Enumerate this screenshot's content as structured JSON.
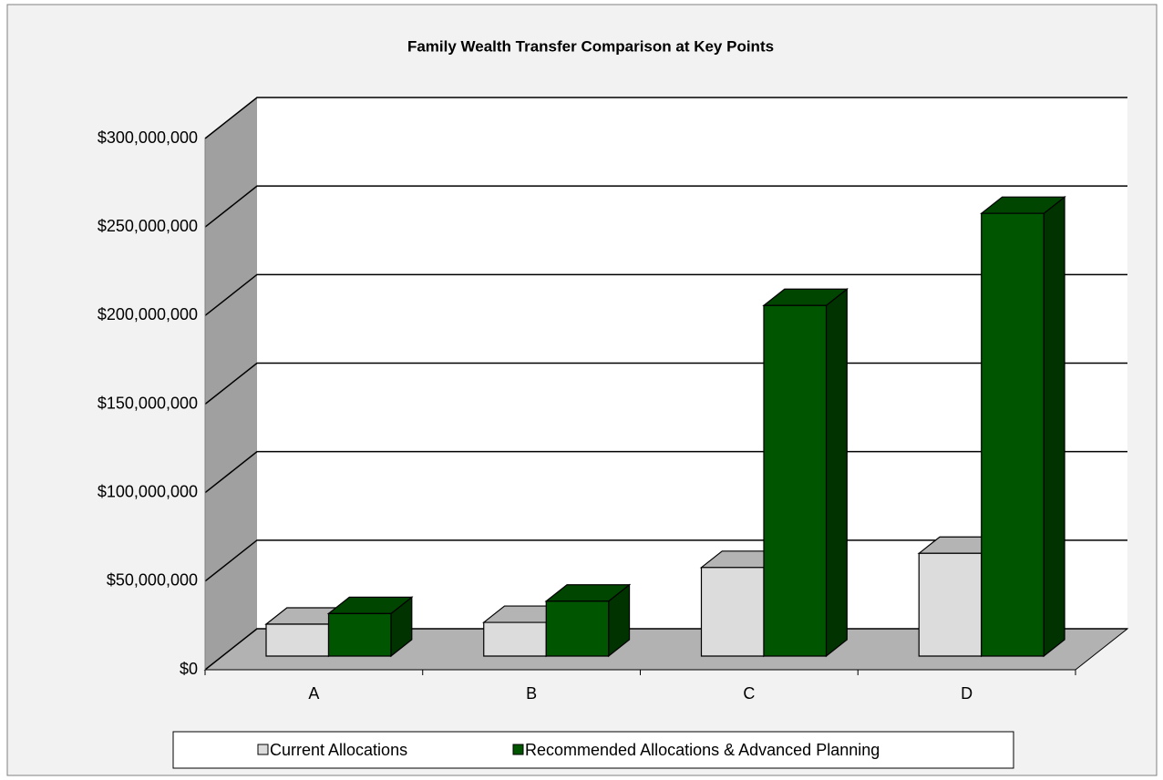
{
  "chart_data": {
    "type": "bar3d",
    "title": "Family Wealth Transfer Comparison at Key Points",
    "categories": [
      "A",
      "B",
      "C",
      "D"
    ],
    "series": [
      {
        "name": "Current Allocations",
        "color": "#dcdcdc",
        "values": [
          18000000,
          19000000,
          50000000,
          58000000
        ]
      },
      {
        "name": "Recommended Allocations & Advanced Planning",
        "color": "#005500",
        "values": [
          24000000,
          31000000,
          198000000,
          250000000
        ]
      }
    ],
    "ylim": [
      0,
      300000000
    ],
    "yticks": [
      {
        "value": 0,
        "label": "$0"
      },
      {
        "value": 50000000,
        "label": "$50,000,000"
      },
      {
        "value": 100000000,
        "label": "$100,000,000"
      },
      {
        "value": 150000000,
        "label": "$150,000,000"
      },
      {
        "value": 200000000,
        "label": "$200,000,000"
      },
      {
        "value": 250000000,
        "label": "$250,000,000"
      },
      {
        "value": 300000000,
        "label": "$300,000,000"
      }
    ],
    "grid": true,
    "legend": "bottom"
  }
}
